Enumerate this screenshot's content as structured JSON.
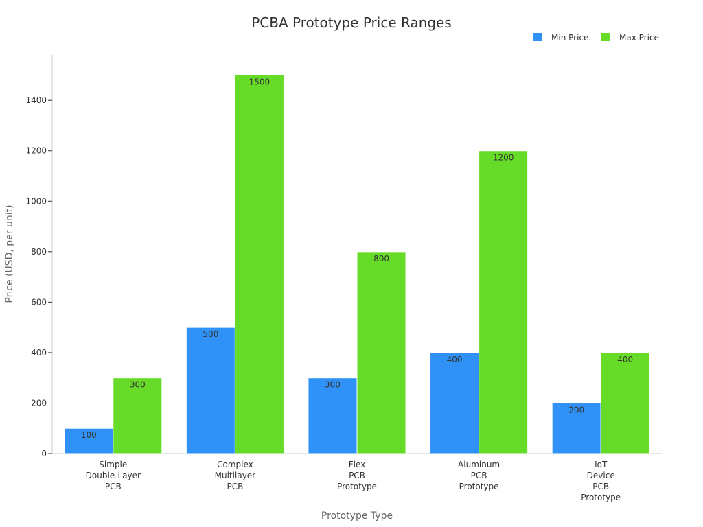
{
  "chart_data": {
    "type": "bar",
    "title": "PCBA Prototype Price Ranges",
    "xlabel": "Prototype Type",
    "ylabel": "Price (USD, per unit)",
    "ylim": [
      0,
      1580
    ],
    "yticks": [
      0,
      200,
      400,
      600,
      800,
      1000,
      1200,
      1400
    ],
    "grid": false,
    "legend_position": "top-right",
    "categories": [
      [
        "Simple",
        "Double-Layer",
        "PCB"
      ],
      [
        "Complex",
        "Multilayer",
        "PCB"
      ],
      [
        "Flex",
        "PCB",
        "Prototype"
      ],
      [
        "Aluminum",
        "PCB",
        "Prototype"
      ],
      [
        "IoT",
        "Device",
        "PCB",
        "Prototype"
      ]
    ],
    "series": [
      {
        "name": "Min Price",
        "color": "#3091f7",
        "values": [
          100,
          500,
          300,
          400,
          200
        ]
      },
      {
        "name": "Max Price",
        "color": "#66dc28",
        "values": [
          300,
          1500,
          800,
          1200,
          400
        ]
      }
    ]
  }
}
